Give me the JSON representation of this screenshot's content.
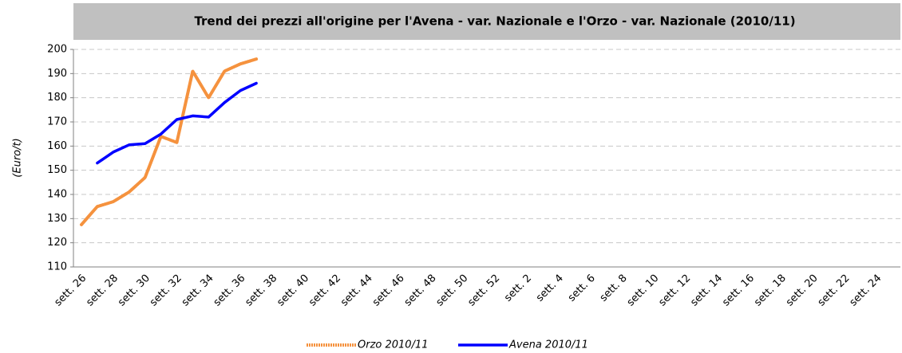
{
  "chart_data": {
    "type": "line",
    "title": "Trend dei prezzi all'origine per l'Avena - var. Nazionale e l'Orzo - var. Nazionale (2010/11)",
    "y_label": "(Euro/t)",
    "categories": [
      "sett. 26",
      null,
      "sett. 28",
      null,
      "sett. 30",
      null,
      "sett. 32",
      null,
      "sett. 34",
      null,
      "sett. 36",
      null,
      "sett. 38",
      null,
      "sett. 40",
      null,
      "sett. 42",
      null,
      "sett. 44",
      null,
      "sett. 46",
      null,
      "sett. 48",
      null,
      "sett. 50",
      null,
      "sett. 52",
      null,
      "sett. 2",
      null,
      "sett. 4",
      null,
      "sett. 6",
      null,
      "sett. 8",
      null,
      "sett. 10",
      null,
      "sett. 12",
      null,
      "sett. 14",
      null,
      "sett. 16",
      null,
      "sett. 18",
      null,
      "sett. 20",
      null,
      "sett. 22",
      null,
      "sett. 24",
      null
    ],
    "series": [
      {
        "name": "Orzo 2010/11",
        "color": "#f5923e",
        "values": [
          127.5,
          135,
          137,
          141,
          147,
          164,
          161.5,
          191,
          180,
          191,
          194,
          196,
          null,
          null,
          null,
          null,
          null,
          null,
          null,
          null,
          null,
          null,
          null,
          null,
          null,
          null,
          null,
          null,
          null,
          null,
          null,
          null,
          null,
          null,
          null,
          null,
          null,
          null,
          null,
          null,
          null,
          null,
          null,
          null,
          null,
          null,
          null,
          null,
          null,
          null,
          null,
          null
        ]
      },
      {
        "name": "Avena 2010/11",
        "color": "#0000ff",
        "values": [
          null,
          153,
          157.5,
          160.5,
          161,
          165,
          171,
          172.5,
          172,
          178,
          183,
          186,
          null,
          null,
          null,
          null,
          null,
          null,
          null,
          null,
          null,
          null,
          null,
          null,
          null,
          null,
          null,
          null,
          null,
          null,
          null,
          null,
          null,
          null,
          null,
          null,
          null,
          null,
          null,
          null,
          null,
          null,
          null,
          null,
          null,
          null,
          null,
          null,
          null,
          null,
          null,
          null
        ]
      }
    ],
    "ylim": [
      110,
      200
    ],
    "yticks": [
      110,
      120,
      130,
      140,
      150,
      160,
      170,
      180,
      190,
      200
    ],
    "grid": true,
    "legend": "bottom"
  }
}
